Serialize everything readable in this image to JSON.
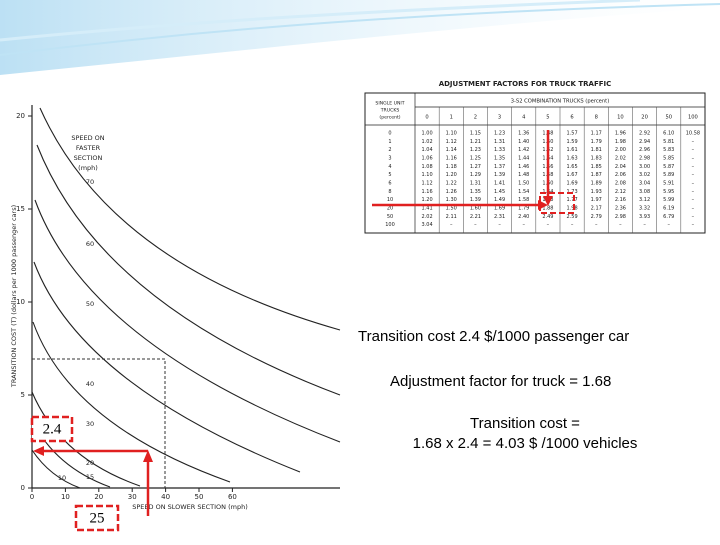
{
  "figure": {
    "y_axis_label": "TRANSITION COST (T) (dollars per 1000 passenger cars)",
    "x_axis_label": "SPEED ON SLOWER SECTION (mph)",
    "curves_title": [
      "SPEED ON",
      "FASTER",
      "SECTION",
      "(mph)"
    ],
    "curve_labels": [
      "70",
      "60",
      "50",
      "40",
      "30",
      "20",
      "15",
      "10"
    ],
    "yticks": [
      "0",
      "5",
      "10",
      "15",
      "20"
    ],
    "xticks": [
      "0",
      "10",
      "20",
      "30",
      "40",
      "50",
      "60"
    ]
  },
  "table": {
    "title": "ADJUSTMENT FACTORS FOR TRUCK TRAFFIC",
    "row_header": [
      "SINGLE UNIT",
      "TRUCKS",
      "(percent)"
    ],
    "column_group": "3-S2 COMBINATION TRUCKS (percent)",
    "columns": [
      "0",
      "1",
      "2",
      "3",
      "4",
      "5",
      "6",
      "8",
      "10",
      "20",
      "50",
      "100"
    ],
    "rows": [
      [
        "0",
        "1.00",
        "1.10",
        "1.15",
        "1.23",
        "1.36",
        "1.48",
        "1.57",
        "1.17",
        "1.96",
        "2.92",
        "6.10",
        "10.58"
      ],
      [
        "1",
        "1.02",
        "1.12",
        "1.21",
        "1.31",
        "1.40",
        "1.50",
        "1.59",
        "1.79",
        "1.98",
        "2.94",
        "5.81",
        "–"
      ],
      [
        "2",
        "1.04",
        "1.14",
        "1.23",
        "1.33",
        "1.42",
        "1.52",
        "1.61",
        "1.81",
        "2.00",
        "2.96",
        "5.83",
        "–"
      ],
      [
        "3",
        "1.06",
        "1.16",
        "1.25",
        "1.35",
        "1.44",
        "1.54",
        "1.63",
        "1.83",
        "2.02",
        "2.98",
        "5.85",
        "–"
      ],
      [
        "4",
        "1.08",
        "1.18",
        "1.27",
        "1.37",
        "1.46",
        "1.56",
        "1.65",
        "1.85",
        "2.04",
        "3.00",
        "5.87",
        "–"
      ],
      [
        "5",
        "1.10",
        "1.20",
        "1.29",
        "1.39",
        "1.48",
        "1.58",
        "1.67",
        "1.87",
        "2.06",
        "3.02",
        "5.89",
        "–"
      ],
      [
        "6",
        "1.12",
        "1.22",
        "1.31",
        "1.41",
        "1.50",
        "1.60",
        "1.69",
        "1.89",
        "2.08",
        "3.04",
        "5.91",
        "–"
      ],
      [
        "8",
        "1.16",
        "1.26",
        "1.35",
        "1.45",
        "1.54",
        "1.64",
        "1.73",
        "1.93",
        "2.12",
        "3.08",
        "5.95",
        "–"
      ],
      [
        "10",
        "1.20",
        "1.30",
        "1.39",
        "1.49",
        "1.58",
        "1.68",
        "1.77",
        "1.97",
        "2.16",
        "3.12",
        "5.99",
        "–"
      ],
      [
        "20",
        "1.41",
        "1.50",
        "1.60",
        "1.69",
        "1.79",
        "1.88",
        "1.98",
        "2.17",
        "2.36",
        "3.32",
        "6.19",
        "–"
      ],
      [
        "50",
        "2.02",
        "2.11",
        "2.21",
        "2.31",
        "2.40",
        "2.49",
        "2.59",
        "2.79",
        "2.98",
        "3.93",
        "6.79",
        "–"
      ],
      [
        "100",
        "3.04",
        "–",
        "–",
        "–",
        "–",
        "–",
        "–",
        "–",
        "–",
        "–",
        "–",
        "–"
      ]
    ]
  },
  "annotations": {
    "cost_box": "2.4",
    "speed_box": "25",
    "transition_cost": "Transition cost  2.4 $/1000 passenger car",
    "adjustment": "Adjustment factor for truck = 1.68",
    "result_line1": "Transition cost =",
    "result_line2": "1.68 x 2.4 = 4.03 $ /1000 vehicles"
  }
}
